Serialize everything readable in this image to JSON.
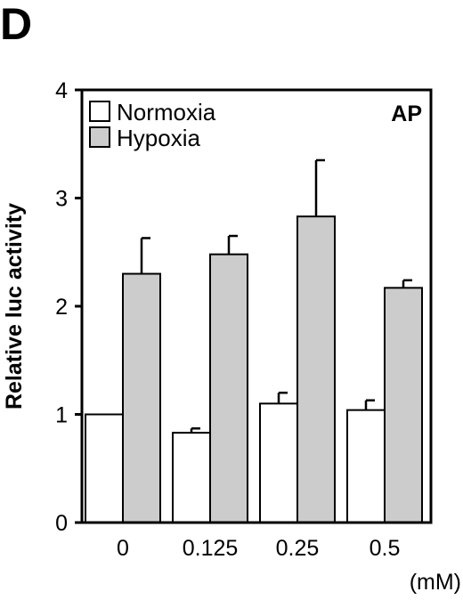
{
  "panel_label": "D",
  "chart_data": {
    "type": "bar",
    "categories": [
      "0",
      "0.125",
      "0.25",
      "0.5"
    ],
    "series": [
      {
        "name": "Normoxia",
        "values": [
          1.0,
          0.83,
          1.1,
          1.04
        ],
        "errors": [
          0.0,
          0.04,
          0.1,
          0.09
        ],
        "color": "#ffffff"
      },
      {
        "name": "Hypoxia",
        "values": [
          2.3,
          2.48,
          2.83,
          2.17
        ],
        "errors": [
          0.33,
          0.17,
          0.52,
          0.07
        ],
        "color": "#cccccc"
      }
    ],
    "ylabel": "Relative luc activity",
    "xunit": "(mM)",
    "annotation": "AP",
    "ylim": [
      0,
      4
    ],
    "yticks": [
      0,
      1,
      2,
      3,
      4
    ],
    "legend_position": "top-left",
    "grid": false
  }
}
